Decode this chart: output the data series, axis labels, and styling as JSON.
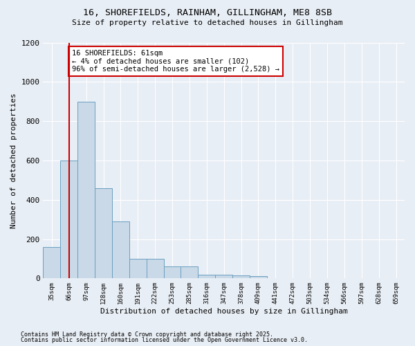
{
  "title1": "16, SHOREFIELDS, RAINHAM, GILLINGHAM, ME8 8SB",
  "title2": "Size of property relative to detached houses in Gillingham",
  "xlabel": "Distribution of detached houses by size in Gillingham",
  "ylabel": "Number of detached properties",
  "categories": [
    "35sqm",
    "66sqm",
    "97sqm",
    "128sqm",
    "160sqm",
    "191sqm",
    "222sqm",
    "253sqm",
    "285sqm",
    "316sqm",
    "347sqm",
    "378sqm",
    "409sqm",
    "441sqm",
    "472sqm",
    "503sqm",
    "534sqm",
    "566sqm",
    "597sqm",
    "628sqm",
    "659sqm"
  ],
  "values": [
    160,
    600,
    900,
    460,
    290,
    100,
    100,
    60,
    60,
    20,
    20,
    15,
    10,
    0,
    0,
    0,
    0,
    0,
    0,
    0,
    0
  ],
  "bar_color": "#c9d9e8",
  "bar_edge_color": "#6a9fc0",
  "vline_x": 1.0,
  "vline_color": "#cc0000",
  "annotation_text": "16 SHOREFIELDS: 61sqm\n← 4% of detached houses are smaller (102)\n96% of semi-detached houses are larger (2,528) →",
  "annotation_box_color": "#ffffff",
  "annotation_box_edge": "#cc0000",
  "ylim": [
    0,
    1200
  ],
  "yticks": [
    0,
    200,
    400,
    600,
    800,
    1000,
    1200
  ],
  "background_color": "#e8eef5",
  "footnote1": "Contains HM Land Registry data © Crown copyright and database right 2025.",
  "footnote2": "Contains public sector information licensed under the Open Government Licence v3.0."
}
